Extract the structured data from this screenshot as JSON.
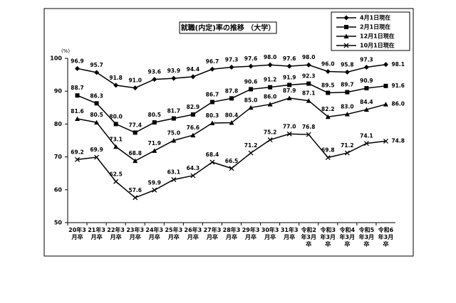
{
  "chart_data": {
    "type": "line",
    "title": "就職(内定)率の推移 （大学）",
    "y_unit": "(%)",
    "categories": [
      "20年3月卒",
      "21年3月卒",
      "22年3月卒",
      "23年3月卒",
      "24年3月卒",
      "25年3月卒",
      "26年3月卒",
      "27年3月卒",
      "28年3月卒",
      "29年3月卒",
      "30年3月卒",
      "31年3月卒",
      "令和2年3月卒",
      "令和3年3月卒",
      "令和4年3月卒",
      "令和5年3月卒",
      "令和6年3月卒"
    ],
    "ylim": [
      50,
      100
    ],
    "yticks": [
      50,
      60,
      70,
      80,
      90,
      100
    ],
    "series": [
      {
        "name": "4月1日現在",
        "color": "#000000",
        "marker": "diamond",
        "values": [
          96.9,
          95.7,
          91.8,
          91.0,
          93.6,
          93.9,
          94.4,
          96.7,
          97.3,
          97.6,
          98.0,
          97.6,
          98.0,
          96.0,
          95.8,
          97.3,
          98.1
        ],
        "value_labels": [
          "96.9",
          "95.7",
          "91.8",
          "91.0",
          "93.6",
          "93.9",
          "94.4",
          "96.7",
          "97.3",
          "97.6",
          "98.0",
          "97.6",
          "98.0",
          "96.0",
          "95.8",
          "97.3",
          "98.1"
        ]
      },
      {
        "name": "2月1日現在",
        "color": "#000000",
        "marker": "square",
        "values": [
          88.7,
          86.3,
          80.0,
          77.4,
          80.5,
          81.7,
          82.9,
          86.7,
          87.8,
          90.6,
          91.2,
          91.9,
          92.3,
          89.5,
          89.7,
          90.9,
          91.6
        ],
        "value_labels": [
          "88.7",
          "86.3",
          "80.0",
          "77.4",
          "80.5",
          "81.7",
          "82.9",
          "86.7",
          "87.8",
          "90.6",
          "91.2",
          "91.9",
          "92.3",
          "89.5",
          "89.7",
          "90.9",
          "91.6"
        ]
      },
      {
        "name": "12月1日現在",
        "color": "#000000",
        "marker": "triangle",
        "values": [
          81.6,
          80.5,
          73.1,
          68.8,
          71.9,
          75.0,
          76.6,
          80.3,
          80.4,
          85.0,
          86.0,
          87.9,
          87.1,
          82.2,
          83.0,
          84.4,
          86.0
        ],
        "value_labels": [
          "81.6",
          "80.5",
          "73.1",
          "68.8",
          "71.9",
          "75.0",
          "76.6",
          "80.3",
          "80.4",
          "85.0",
          "86.0",
          "87.9",
          "87.1",
          "82.2",
          "83.0",
          "84.4",
          "86.0"
        ]
      },
      {
        "name": "10月1日現在",
        "color": "#000000",
        "marker": "x",
        "values": [
          69.2,
          69.9,
          62.5,
          57.6,
          59.9,
          63.1,
          64.3,
          68.4,
          66.5,
          71.2,
          75.2,
          77.0,
          76.8,
          69.8,
          71.2,
          74.1,
          74.8
        ],
        "value_labels": [
          "69.2",
          "69.9",
          "62.5",
          "57.6",
          "59.9",
          "63.1",
          "64.3",
          "68.4",
          "66.5",
          "71.2",
          "75.2",
          "77.0",
          "76.8",
          "69.8",
          "71.2",
          "74.1",
          "74.8"
        ]
      }
    ]
  }
}
